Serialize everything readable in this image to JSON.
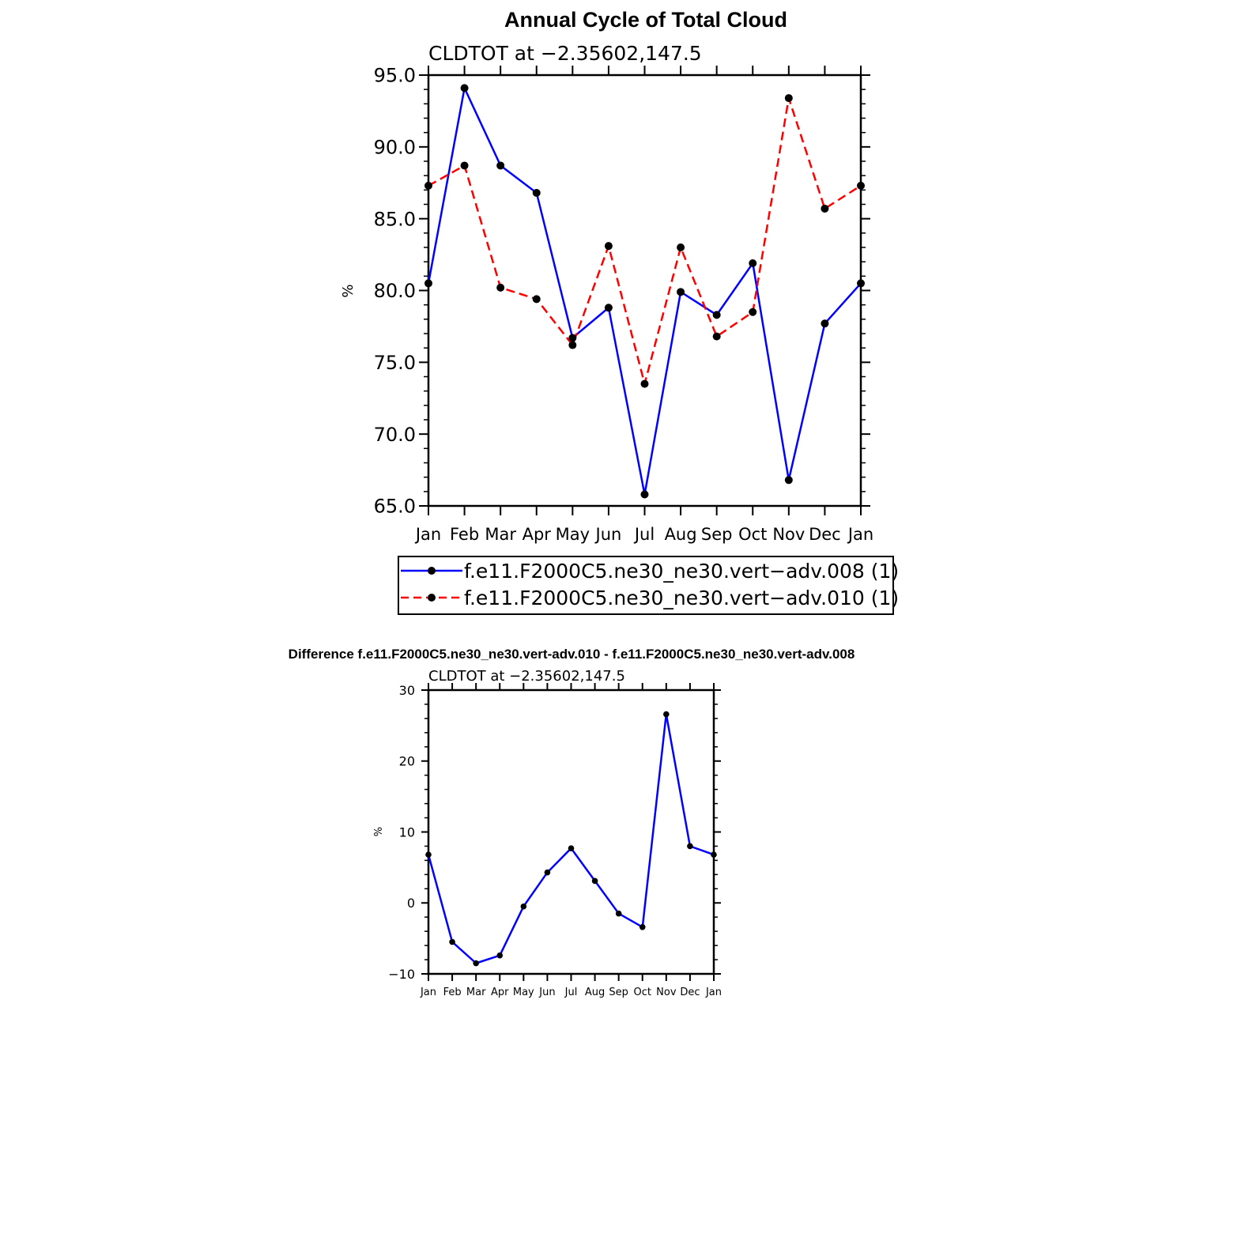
{
  "chart_data": [
    {
      "type": "line",
      "title": "Annual Cycle of Total Cloud",
      "subtitle": "CLDTOT at −2.35602,147.5",
      "xlabel": "",
      "ylabel": "%",
      "categories": [
        "Jan",
        "Feb",
        "Mar",
        "Apr",
        "May",
        "Jun",
        "Jul",
        "Aug",
        "Sep",
        "Oct",
        "Nov",
        "Dec",
        "Jan"
      ],
      "ylim": [
        65,
        95
      ],
      "yticks": [
        65,
        70,
        75,
        80,
        85,
        90,
        95
      ],
      "ytick_labels": [
        "65.0",
        "70.0",
        "75.0",
        "80.0",
        "85.0",
        "90.0",
        "95.0"
      ],
      "grid": false,
      "legend_position": "bottom",
      "series": [
        {
          "name": "f.e11.F2000C5.ne30_ne30.vert−adv.008 (1)",
          "color": "#0000ff",
          "dash": "solid",
          "values": [
            80.5,
            94.1,
            88.7,
            86.8,
            76.7,
            78.8,
            65.8,
            79.9,
            78.3,
            81.9,
            66.8,
            77.7,
            80.5
          ]
        },
        {
          "name": "f.e11.F2000C5.ne30_ne30.vert−adv.010 (1)",
          "color": "#ff0000",
          "dash": "dashed",
          "values": [
            87.3,
            88.7,
            80.2,
            79.4,
            76.2,
            83.1,
            73.5,
            83.0,
            76.8,
            78.5,
            93.4,
            85.7,
            87.3
          ]
        }
      ]
    },
    {
      "type": "line",
      "title": "Difference f.e11.F2000C5.ne30_ne30.vert-adv.010 - f.e11.F2000C5.ne30_ne30.vert-adv.008",
      "subtitle": "CLDTOT at −2.35602,147.5",
      "xlabel": "",
      "ylabel": "%",
      "categories": [
        "Jan",
        "Feb",
        "Mar",
        "Apr",
        "May",
        "Jun",
        "Jul",
        "Aug",
        "Sep",
        "Oct",
        "Nov",
        "Dec",
        "Jan"
      ],
      "ylim": [
        -10,
        30
      ],
      "yticks": [
        -10,
        0,
        10,
        20,
        30
      ],
      "ytick_labels": [
        "−10",
        "0",
        "10",
        "20",
        "30"
      ],
      "grid": false,
      "series": [
        {
          "color": "#0000ff",
          "dash": "solid",
          "values": [
            6.8,
            -5.5,
            -8.5,
            -7.4,
            -0.5,
            4.3,
            7.7,
            3.1,
            -1.5,
            -3.4,
            26.6,
            8.0,
            6.8
          ]
        }
      ]
    }
  ]
}
